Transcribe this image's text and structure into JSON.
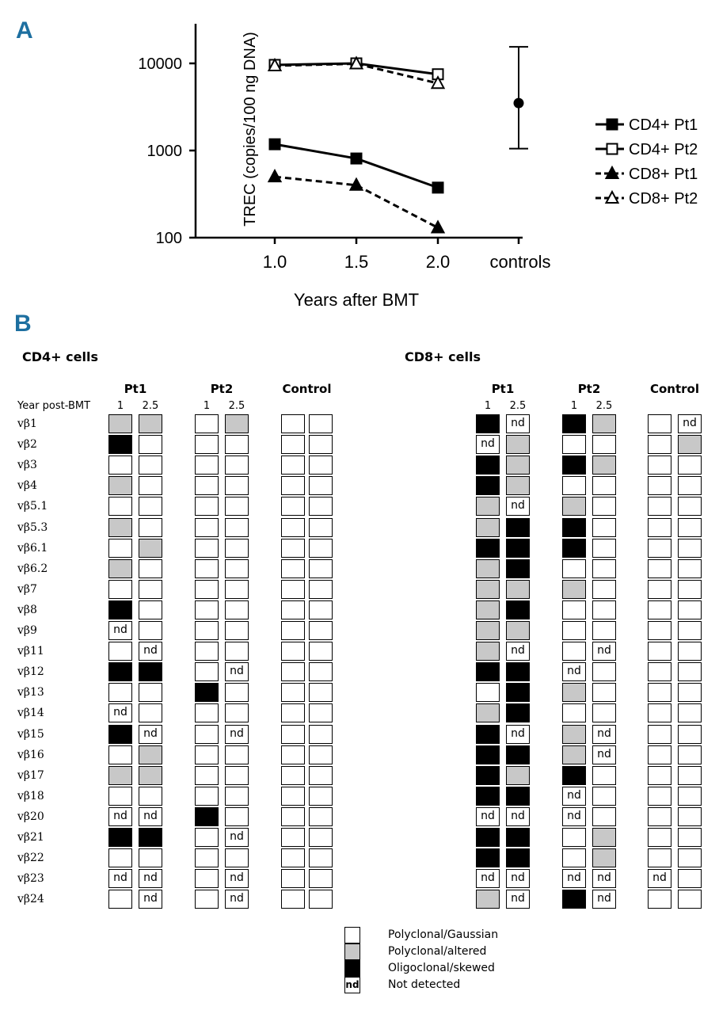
{
  "panel_a": {
    "letter": "A",
    "chart_data": {
      "type": "line",
      "title": "",
      "ylabel": "TREC (copies/100 ng DNA)",
      "xlabel": "Years after BMT",
      "yscale": "log",
      "ylim": [
        100,
        30000
      ],
      "yticks": [
        "100",
        "1000",
        "10000"
      ],
      "categories": [
        "1.0",
        "1.5",
        "2.0",
        "controls"
      ],
      "series": [
        {
          "name": "CD4+ Pt1",
          "x": [
            "1.0",
            "1.5",
            "2.0"
          ],
          "values": [
            1180,
            810,
            375
          ],
          "marker": "filled-square",
          "line": "solid"
        },
        {
          "name": "CD4+ Pt2",
          "x": [
            "1.0",
            "1.5",
            "2.0"
          ],
          "values": [
            9600,
            10000,
            7500
          ],
          "marker": "open-square",
          "line": "solid"
        },
        {
          "name": "CD8+ Pt1",
          "x": [
            "1.0",
            "1.5",
            "2.0"
          ],
          "values": [
            500,
            400,
            130
          ],
          "marker": "filled-triangle",
          "line": "dashed"
        },
        {
          "name": "CD8+ Pt2",
          "x": [
            "1.0",
            "1.5",
            "2.0"
          ],
          "values": [
            9400,
            9900,
            5900
          ],
          "marker": "open-triangle",
          "line": "dashed"
        }
      ],
      "controls": {
        "x": "controls",
        "value": 3500,
        "low": 1050,
        "high": 15500,
        "marker": "filled-circle"
      },
      "legend_position": "right"
    }
  },
  "panel_b": {
    "letter": "B",
    "year_header": "Year post-BMT",
    "cd4": {
      "title": "CD4+ cells",
      "groups": [
        {
          "name": "Pt1",
          "years": [
            "1",
            "2.5"
          ]
        },
        {
          "name": "Pt2",
          "years": [
            "1",
            "2.5"
          ]
        },
        {
          "name": "Control",
          "years": [
            "",
            ""
          ]
        }
      ]
    },
    "cd8": {
      "title": "CD8+ cells",
      "groups": [
        {
          "name": "Pt1",
          "years": [
            "1",
            "2.5"
          ]
        },
        {
          "name": "Pt2",
          "years": [
            "1",
            "2.5"
          ]
        },
        {
          "name": "Control",
          "years": [
            "",
            ""
          ]
        }
      ]
    },
    "rows": [
      "vβ1",
      "vβ2",
      "vβ3",
      "vβ4",
      "vβ5.1",
      "vβ5.3",
      "vβ6.1",
      "vβ6.2",
      "vβ7",
      "vβ8",
      "vβ9",
      "vβ11",
      "vβ12",
      "vβ13",
      "vβ14",
      "vβ15",
      "vβ16",
      "vβ17",
      "vβ18",
      "vβ20",
      "vβ21",
      "vβ22",
      "vβ23",
      "vβ24"
    ],
    "nd_text": "nd",
    "cd4_values": [
      [
        "G",
        "G",
        "W",
        "G",
        "W",
        "W"
      ],
      [
        "B",
        "W",
        "W",
        "W",
        "W",
        "W"
      ],
      [
        "W",
        "W",
        "W",
        "W",
        "W",
        "W"
      ],
      [
        "G",
        "W",
        "W",
        "W",
        "W",
        "W"
      ],
      [
        "W",
        "W",
        "W",
        "W",
        "W",
        "W"
      ],
      [
        "G",
        "W",
        "W",
        "W",
        "W",
        "W"
      ],
      [
        "W",
        "G",
        "W",
        "W",
        "W",
        "W"
      ],
      [
        "G",
        "W",
        "W",
        "W",
        "W",
        "W"
      ],
      [
        "W",
        "W",
        "W",
        "W",
        "W",
        "W"
      ],
      [
        "B",
        "W",
        "W",
        "W",
        "W",
        "W"
      ],
      [
        "nd",
        "W",
        "W",
        "W",
        "W",
        "W"
      ],
      [
        "W",
        "nd",
        "W",
        "W",
        "W",
        "W"
      ],
      [
        "B",
        "B",
        "W",
        "nd",
        "W",
        "W"
      ],
      [
        "W",
        "W",
        "B",
        "W",
        "W",
        "W"
      ],
      [
        "nd",
        "W",
        "W",
        "W",
        "W",
        "W"
      ],
      [
        "B",
        "nd",
        "W",
        "nd",
        "W",
        "W"
      ],
      [
        "W",
        "G",
        "W",
        "W",
        "W",
        "W"
      ],
      [
        "G",
        "G",
        "W",
        "W",
        "W",
        "W"
      ],
      [
        "W",
        "W",
        "W",
        "W",
        "W",
        "W"
      ],
      [
        "nd",
        "nd",
        "B",
        "W",
        "W",
        "W"
      ],
      [
        "B",
        "B",
        "W",
        "nd",
        "W",
        "W"
      ],
      [
        "W",
        "W",
        "W",
        "W",
        "W",
        "W"
      ],
      [
        "nd",
        "nd",
        "W",
        "nd",
        "W",
        "W"
      ],
      [
        "W",
        "nd",
        "W",
        "nd",
        "W",
        "W"
      ]
    ],
    "cd8_values": [
      [
        "B",
        "nd",
        "B",
        "G",
        "W",
        "nd"
      ],
      [
        "nd",
        "G",
        "W",
        "W",
        "W",
        "G"
      ],
      [
        "B",
        "G",
        "B",
        "G",
        "W",
        "W"
      ],
      [
        "B",
        "G",
        "W",
        "W",
        "W",
        "W"
      ],
      [
        "G",
        "nd",
        "G",
        "W",
        "W",
        "W"
      ],
      [
        "G",
        "B",
        "B",
        "W",
        "W",
        "W"
      ],
      [
        "B",
        "B",
        "B",
        "W",
        "W",
        "W"
      ],
      [
        "G",
        "B",
        "W",
        "W",
        "W",
        "W"
      ],
      [
        "G",
        "G",
        "G",
        "W",
        "W",
        "W"
      ],
      [
        "G",
        "B",
        "W",
        "W",
        "W",
        "W"
      ],
      [
        "G",
        "G",
        "W",
        "W",
        "W",
        "W"
      ],
      [
        "G",
        "nd",
        "W",
        "nd",
        "W",
        "W"
      ],
      [
        "B",
        "B",
        "nd",
        "W",
        "W",
        "W"
      ],
      [
        "W",
        "B",
        "G",
        "W",
        "W",
        "W"
      ],
      [
        "G",
        "B",
        "W",
        "W",
        "W",
        "W"
      ],
      [
        "B",
        "nd",
        "G",
        "nd",
        "W",
        "W"
      ],
      [
        "B",
        "B",
        "G",
        "nd",
        "W",
        "W"
      ],
      [
        "B",
        "G",
        "B",
        "W",
        "W",
        "W"
      ],
      [
        "B",
        "B",
        "nd",
        "W",
        "W",
        "W"
      ],
      [
        "nd",
        "nd",
        "nd",
        "W",
        "W",
        "W"
      ],
      [
        "B",
        "B",
        "W",
        "G",
        "W",
        "W"
      ],
      [
        "B",
        "B",
        "W",
        "G",
        "W",
        "W"
      ],
      [
        "nd",
        "nd",
        "nd",
        "nd",
        "nd",
        "W"
      ],
      [
        "G",
        "nd",
        "B",
        "nd",
        "W",
        "W"
      ]
    ],
    "legend": [
      {
        "key": "W",
        "label": "Polyclonal/Gaussian"
      },
      {
        "key": "G",
        "label": "Polyclonal/altered"
      },
      {
        "key": "B",
        "label": "Oligoclonal/skewed"
      },
      {
        "key": "nd",
        "label": "Not detected"
      }
    ],
    "colors": {
      "W": "#ffffff",
      "G": "#c8c8c8",
      "B": "#000000"
    }
  }
}
